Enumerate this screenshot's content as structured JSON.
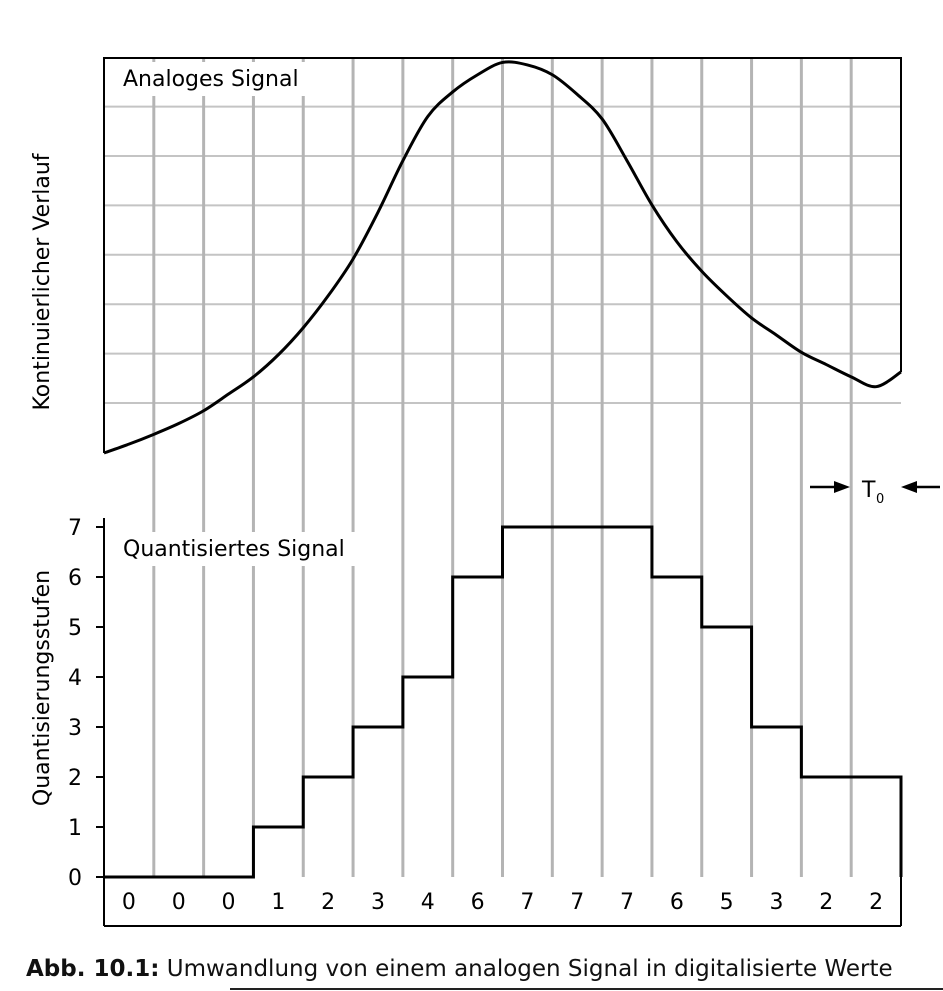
{
  "chart_data": [
    {
      "type": "line",
      "label": "Analoges Signal",
      "ylabel": "Kontinuierlicher Verlauf",
      "x": [
        0,
        0.5,
        1,
        1.5,
        2,
        2.5,
        3,
        3.5,
        4,
        4.5,
        5,
        5.5,
        6,
        6.5,
        7,
        7.5,
        8,
        8.5,
        9,
        9.5,
        10,
        10.5,
        11,
        11.5,
        12,
        12.5,
        13,
        13.5,
        14,
        14.5,
        15,
        15.5,
        16
      ],
      "y": [
        0.0,
        0.18,
        0.38,
        0.6,
        0.86,
        1.2,
        1.55,
        2.0,
        2.55,
        3.2,
        3.95,
        4.9,
        5.95,
        6.85,
        7.35,
        7.7,
        7.95,
        7.9,
        7.7,
        7.3,
        6.8,
        5.95,
        5.05,
        4.3,
        3.7,
        3.2,
        2.75,
        2.4,
        2.05,
        1.8,
        1.55,
        1.35,
        1.65
      ],
      "ylim": [
        0,
        8
      ],
      "grid": true
    },
    {
      "type": "line",
      "step": true,
      "label": "Quantisiertes Signal",
      "ylabel": "Quantisierungsstufen",
      "yticks": [
        "0",
        "1",
        "2",
        "3",
        "4",
        "5",
        "6",
        "7"
      ],
      "values": [
        0,
        0,
        0,
        1,
        2,
        3,
        4,
        6,
        7,
        7,
        7,
        6,
        5,
        3,
        2,
        2
      ],
      "value_labels": [
        "0",
        "0",
        "0",
        "1",
        "2",
        "3",
        "4",
        "6",
        "7",
        "7",
        "7",
        "6",
        "5",
        "3",
        "2",
        "2"
      ],
      "ylim": [
        0,
        7
      ],
      "period_label": "T",
      "period_subscript": "0",
      "grid": true
    }
  ],
  "caption": {
    "number": "Abb. 10.1:",
    "text": " Umwandlung von einem analogen Signal in digitalisierte Werte"
  },
  "colors": {
    "line": "#000000",
    "grid_v": "#b4b4b4",
    "grid_h": "#c4c4c4",
    "frame": "#000000"
  }
}
